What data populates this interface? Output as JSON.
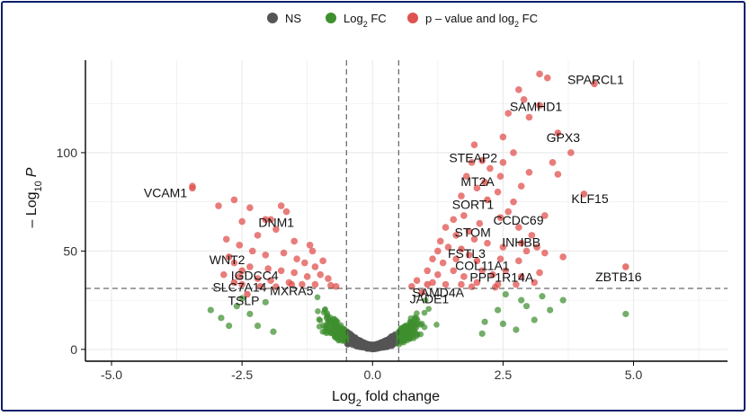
{
  "chart_data": {
    "type": "scatter",
    "title": "",
    "xlabel": "Log2 fold change",
    "ylabel": "-Log10 P",
    "xlim": [
      -5.5,
      6.8
    ],
    "ylim": [
      -6,
      147
    ],
    "x_ticks": [
      -5,
      -2.5,
      0,
      2.5,
      5
    ],
    "x_tick_labels": [
      "-5.0",
      "-2.5",
      "0.0",
      "2.5",
      "5.0"
    ],
    "y_ticks": [
      0,
      50,
      100
    ],
    "y_tick_labels": [
      "0",
      "50",
      "100"
    ],
    "fc_cutoff": 0.5,
    "p_cutoff_log10": 31,
    "grid": true,
    "legend_position": "top",
    "series": [
      {
        "name": "NS",
        "color": "#555555"
      },
      {
        "name": "Log2 FC",
        "color": "#3f8f2f"
      },
      {
        "name": "p - value and log2 FC",
        "color": "#e0524f"
      }
    ],
    "labeled_points": [
      {
        "gene": "SPARCL1",
        "x": 4.25,
        "y": 135
      },
      {
        "gene": "SAMHD1",
        "x": 3.2,
        "y": 124
      },
      {
        "gene": "GPX3",
        "x": 3.55,
        "y": 110
      },
      {
        "gene": "STEAP2",
        "x": 2.1,
        "y": 96
      },
      {
        "gene": "MT2A",
        "x": 2.15,
        "y": 85
      },
      {
        "gene": "SORT1",
        "x": 2.2,
        "y": 76
      },
      {
        "gene": "KLF15",
        "x": 4.05,
        "y": 79
      },
      {
        "gene": "CCDC69",
        "x": 2.45,
        "y": 67
      },
      {
        "gene": "STOM",
        "x": 1.85,
        "y": 60
      },
      {
        "gene": "INHBB",
        "x": 2.85,
        "y": 54
      },
      {
        "gene": "FSTL3",
        "x": 1.7,
        "y": 51
      },
      {
        "gene": "COL11A1",
        "x": 2.0,
        "y": 45
      },
      {
        "gene": "PPP1R14A",
        "x": 2.3,
        "y": 38
      },
      {
        "gene": "ZBTB16",
        "x": 4.85,
        "y": 42
      },
      {
        "gene": "SAMD4A",
        "x": 1.05,
        "y": 33
      },
      {
        "gene": "JADE1",
        "x": 0.95,
        "y": 29
      },
      {
        "gene": "VCAM1",
        "x": -3.45,
        "y": 82
      },
      {
        "gene": "DNM1",
        "x": -2.05,
        "y": 66
      },
      {
        "gene": "WNT2",
        "x": -2.75,
        "y": 47
      },
      {
        "gene": "IGDCC4",
        "x": -2.5,
        "y": 40
      },
      {
        "gene": "SLC7A14",
        "x": -2.65,
        "y": 34
      },
      {
        "gene": "MXRA5",
        "x": -1.55,
        "y": 33
      },
      {
        "gene": "TSLP",
        "x": -2.4,
        "y": 28
      }
    ],
    "highlight_points": [
      [
        3.45,
        95
      ],
      [
        3.55,
        89
      ],
      [
        3.8,
        100
      ],
      [
        2.9,
        127
      ],
      [
        3.2,
        140
      ],
      [
        3.35,
        138
      ],
      [
        2.8,
        132
      ],
      [
        2.6,
        120
      ],
      [
        3.0,
        118
      ],
      [
        2.5,
        108
      ],
      [
        2.7,
        100
      ],
      [
        3.0,
        90
      ],
      [
        2.5,
        95
      ],
      [
        2.85,
        83
      ],
      [
        2.45,
        88
      ],
      [
        2.25,
        92
      ],
      [
        1.95,
        104
      ],
      [
        1.9,
        95
      ],
      [
        1.8,
        88
      ],
      [
        2.4,
        80
      ],
      [
        2.7,
        75
      ],
      [
        2.0,
        82
      ],
      [
        1.7,
        78
      ],
      [
        2.6,
        70
      ],
      [
        3.3,
        68
      ],
      [
        1.75,
        68
      ],
      [
        1.55,
        66
      ],
      [
        1.4,
        62
      ],
      [
        2.05,
        64
      ],
      [
        2.8,
        62
      ],
      [
        3.05,
        58
      ],
      [
        3.15,
        52
      ],
      [
        3.65,
        47
      ],
      [
        3.3,
        49
      ],
      [
        2.95,
        50
      ],
      [
        1.6,
        58
      ],
      [
        1.3,
        55
      ],
      [
        1.25,
        50
      ],
      [
        1.45,
        52
      ],
      [
        1.95,
        56
      ],
      [
        2.2,
        54
      ],
      [
        2.5,
        52
      ],
      [
        1.15,
        46
      ],
      [
        1.35,
        44
      ],
      [
        1.6,
        46
      ],
      [
        1.85,
        48
      ],
      [
        2.45,
        46
      ],
      [
        2.8,
        45
      ],
      [
        1.05,
        40
      ],
      [
        1.25,
        38
      ],
      [
        1.55,
        40
      ],
      [
        1.75,
        37
      ],
      [
        2.1,
        40
      ],
      [
        2.55,
        40
      ],
      [
        2.85,
        37
      ],
      [
        3.2,
        39
      ],
      [
        0.85,
        35
      ],
      [
        1.15,
        34
      ],
      [
        1.4,
        33
      ],
      [
        1.7,
        33
      ],
      [
        2.0,
        34
      ],
      [
        2.4,
        33
      ],
      [
        2.75,
        33
      ],
      [
        3.1,
        34
      ],
      [
        0.75,
        32
      ],
      [
        1.9,
        31.8
      ],
      [
        2.35,
        31.6
      ],
      [
        -3.45,
        83
      ],
      [
        -2.95,
        73
      ],
      [
        -2.65,
        76
      ],
      [
        -2.35,
        72
      ],
      [
        -2.5,
        65
      ],
      [
        -1.75,
        73
      ],
      [
        -1.65,
        70
      ],
      [
        -1.95,
        66
      ],
      [
        -1.85,
        61
      ],
      [
        -2.2,
        58
      ],
      [
        -1.5,
        55
      ],
      [
        -1.2,
        53
      ],
      [
        -1.15,
        50
      ],
      [
        -2.8,
        56
      ],
      [
        -2.55,
        53
      ],
      [
        -2.3,
        50
      ],
      [
        -2.05,
        48
      ],
      [
        -1.7,
        49
      ],
      [
        -1.45,
        46
      ],
      [
        -1.3,
        44
      ],
      [
        -1.1,
        42
      ],
      [
        -0.95,
        45
      ],
      [
        -2.65,
        44
      ],
      [
        -2.35,
        42
      ],
      [
        -2.0,
        41
      ],
      [
        -1.75,
        40
      ],
      [
        -1.5,
        39
      ],
      [
        -1.25,
        37
      ],
      [
        -1.0,
        38
      ],
      [
        -0.85,
        36
      ],
      [
        -2.85,
        38
      ],
      [
        -2.55,
        37
      ],
      [
        -2.2,
        36
      ],
      [
        -1.95,
        35
      ],
      [
        -1.6,
        34
      ],
      [
        -1.35,
        33
      ],
      [
        -1.1,
        33
      ],
      [
        -0.8,
        32.5
      ],
      [
        -2.5,
        33
      ],
      [
        -2.15,
        32
      ],
      [
        -1.85,
        31.8
      ],
      [
        -0.7,
        32
      ]
    ],
    "fc_only_points": [
      [
        4.85,
        18
      ],
      [
        3.65,
        25
      ],
      [
        3.25,
        27
      ],
      [
        2.95,
        22
      ],
      [
        3.1,
        15
      ],
      [
        2.5,
        13
      ],
      [
        2.75,
        10
      ],
      [
        2.4,
        20
      ],
      [
        2.15,
        14
      ],
      [
        2.55,
        28
      ],
      [
        2.85,
        25
      ],
      [
        3.4,
        20
      ],
      [
        2.1,
        8
      ],
      [
        -2.9,
        16
      ],
      [
        -2.6,
        22
      ],
      [
        -2.75,
        12
      ],
      [
        -2.35,
        18
      ],
      [
        -2.5,
        26
      ],
      [
        -2.2,
        12
      ],
      [
        -3.1,
        20
      ],
      [
        -2.05,
        24
      ],
      [
        -1.9,
        9
      ]
    ],
    "annotations": []
  },
  "legend": {
    "ns_label": "NS",
    "log2fc_label": "Log",
    "log2fc_sub": "2",
    "log2fc_tail": " FC",
    "pv_label": "p – value and log",
    "pv_sub": "2",
    "pv_tail": " FC"
  },
  "axes": {
    "xlabel_main": "Log",
    "xlabel_sub": "2",
    "xlabel_tail": " fold change",
    "ylabel_pre": "– Log",
    "ylabel_sub": "10",
    "ylabel_p": "P"
  },
  "colors": {
    "ns": "#555555",
    "fc": "#3f8f2f",
    "pv": "#e0524f",
    "frame": "#0d1f6b"
  }
}
